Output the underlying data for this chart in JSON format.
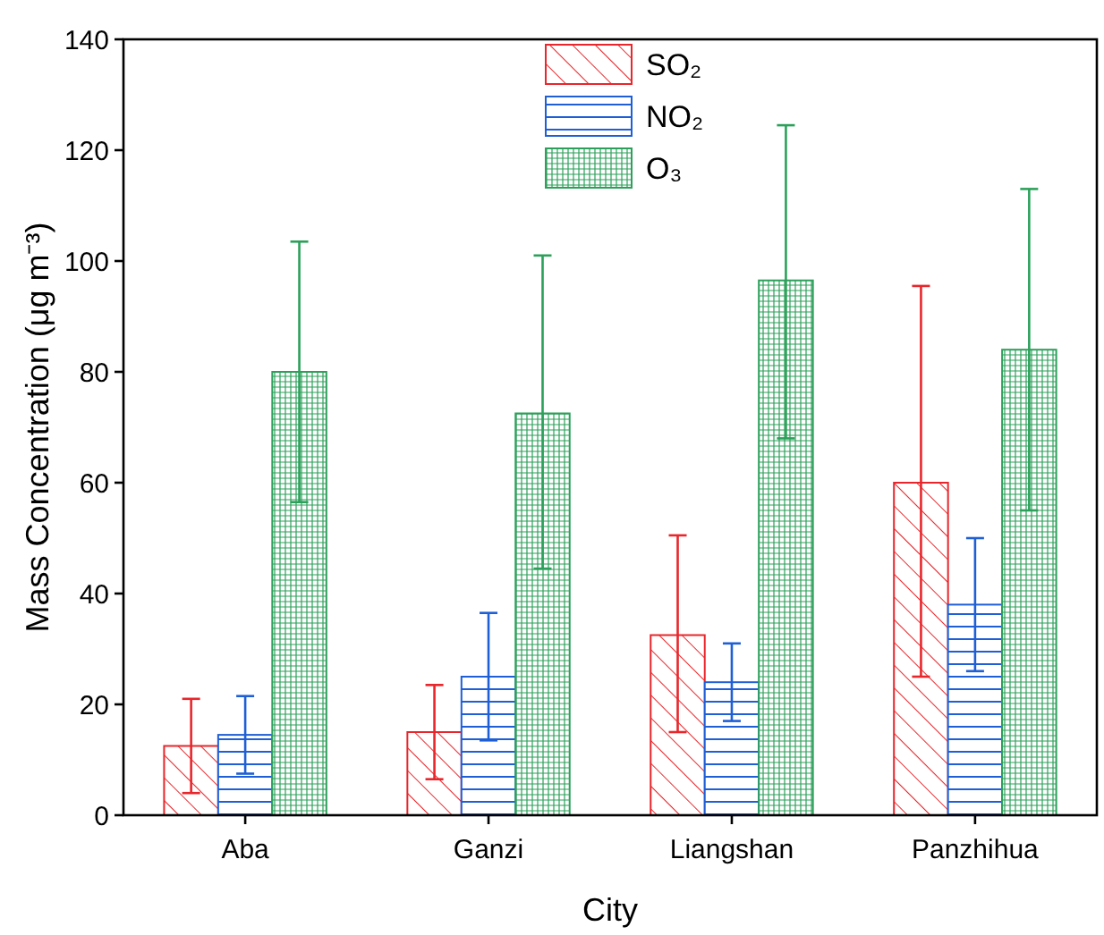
{
  "chart_data": {
    "type": "bar",
    "xlabel": "City",
    "ylabel": "Mass Concentration (μg m⁻³)",
    "categories": [
      "Aba",
      "Ganzi",
      "Liangshan",
      "Panzhihua"
    ],
    "series": [
      {
        "name": "SO₂",
        "color": "#e8262b",
        "values": [
          12.5,
          15,
          32.5,
          60
        ],
        "errors": [
          [
            4,
            21
          ],
          [
            6.5,
            23.5
          ],
          [
            15,
            50.5
          ],
          [
            25,
            95.5
          ]
        ]
      },
      {
        "name": "NO₂",
        "color": "#1f5fd6",
        "values": [
          14.5,
          25,
          24,
          38
        ],
        "errors": [
          [
            7.5,
            21.5
          ],
          [
            13.5,
            36.5
          ],
          [
            17,
            31
          ],
          [
            26,
            50
          ]
        ]
      },
      {
        "name": "O₃",
        "color": "#2ca05a",
        "values": [
          80,
          72.5,
          96.5,
          84
        ],
        "errors": [
          [
            56.5,
            103.5
          ],
          [
            44.5,
            101
          ],
          [
            68,
            124.5
          ],
          [
            55,
            113
          ]
        ]
      }
    ],
    "ylim": [
      0,
      140
    ],
    "yticks": [
      0,
      20,
      40,
      60,
      80,
      100,
      120,
      140
    ],
    "grid": false,
    "legend": "top"
  }
}
